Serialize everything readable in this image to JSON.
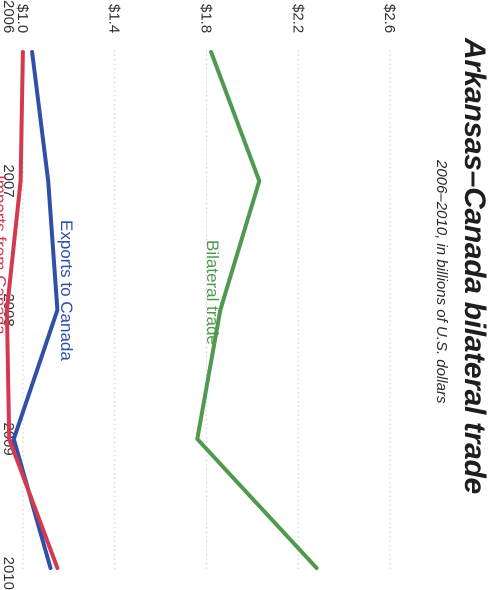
{
  "chart_data": {
    "type": "line",
    "title": "Arkansas–Canada bilateral trade",
    "subtitle": "2006–2010, in billions of U.S. dollars",
    "x": [
      "2006",
      "2007",
      "2008",
      "2009",
      "2010"
    ],
    "yticks": [
      "$2.6",
      "$2.2",
      "$1.8",
      "$1.4",
      "$1.0"
    ],
    "ylim": [
      0.9,
      2.7
    ],
    "grid": true,
    "series": [
      {
        "name": "Bilateral trade",
        "color": "#4f9a4f",
        "values": [
          1.82,
          2.03,
          1.86,
          1.76,
          2.28
        ]
      },
      {
        "name": "Exports to Canada",
        "color": "#2f4fa8",
        "values": [
          1.04,
          1.11,
          1.15,
          0.96,
          1.12
        ]
      },
      {
        "name": "Imports from Canada",
        "color": "#d43a4f",
        "values": [
          1.0,
          0.99,
          0.93,
          0.94,
          1.15
        ]
      }
    ]
  }
}
